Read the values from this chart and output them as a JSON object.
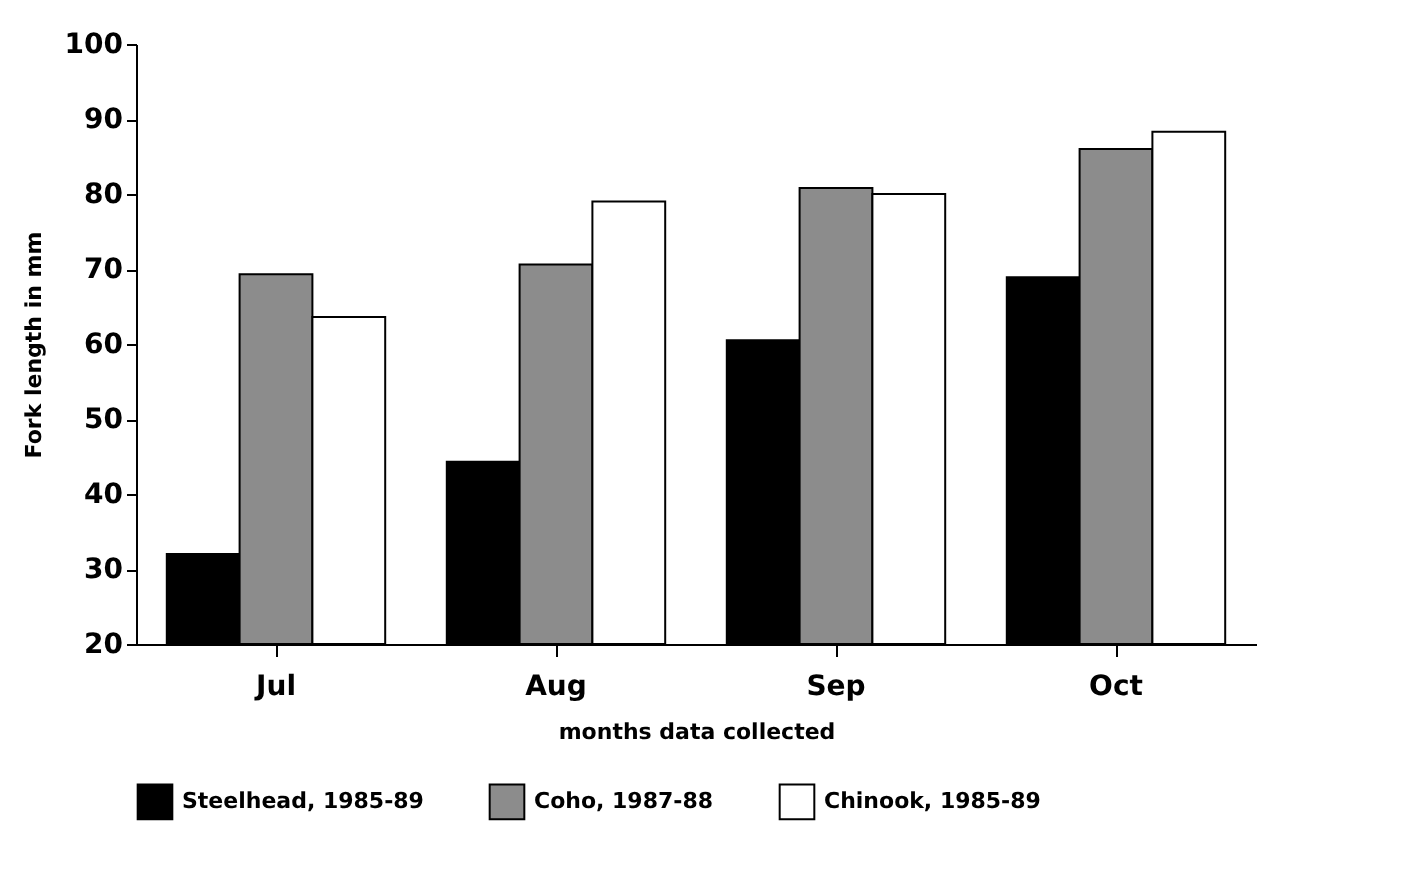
{
  "chart_data": {
    "type": "bar",
    "xlabel": "months data collected",
    "ylabel": "Fork length in mm",
    "categories": [
      "Jul",
      "Aug",
      "Sep",
      "Oct"
    ],
    "series": [
      {
        "name": "Steelhead, 1985-89",
        "color": "#000000",
        "values": [
          32,
          44.3,
          60.5,
          68.9
        ]
      },
      {
        "name": "Coho, 1987-88",
        "color": "#8c8c8c",
        "values": [
          69.3,
          70.6,
          80.8,
          86
        ]
      },
      {
        "name": "Chinook, 1985-89",
        "color": "#ffffff",
        "values": [
          63.6,
          79,
          80,
          88.3
        ]
      }
    ],
    "ylim": [
      20,
      100
    ],
    "yticks": [
      20,
      30,
      40,
      50,
      60,
      70,
      80,
      90,
      100
    ],
    "grid": false,
    "legend": "bottom"
  }
}
